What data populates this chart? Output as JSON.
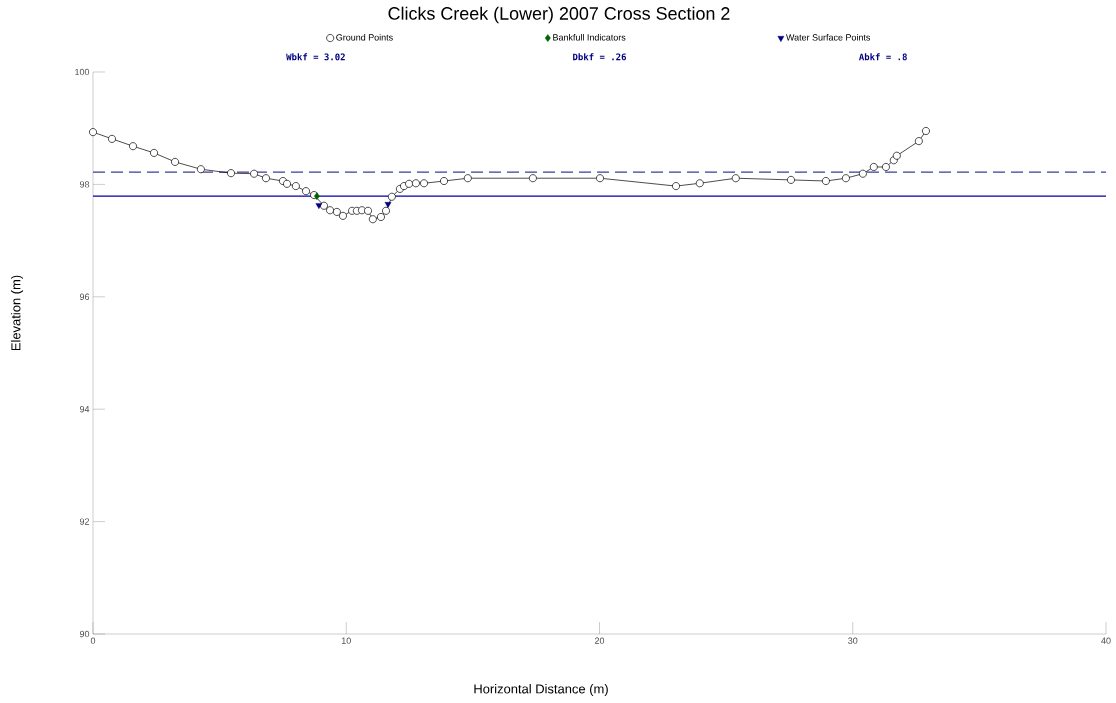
{
  "chart_data": {
    "type": "line",
    "title": "Clicks Creek (Lower) 2007 Cross Section 2",
    "xlabel": "Horizontal Distance (m)",
    "ylabel": "Elevation (m)",
    "xlim": [
      0,
      40
    ],
    "ylim": [
      90,
      100
    ],
    "xticks": [
      0,
      10,
      20,
      30,
      40
    ],
    "yticks": [
      90,
      92,
      94,
      96,
      98,
      100
    ],
    "grid": false,
    "legend": "top",
    "annotations": [
      "Wbkf = 3.02",
      "Dbkf = .26",
      "Abkf = .8"
    ],
    "ref_lines": [
      {
        "axis": "y",
        "value": 98.22,
        "color": "#3c3c96",
        "line_style": "dashed"
      },
      {
        "axis": "y",
        "value": 97.79,
        "color": "#0000a8",
        "line_style": "solid"
      }
    ],
    "series": [
      {
        "name": "Ground Points",
        "color": "#000000",
        "marker": "circle",
        "line_style": "solid",
        "x": [
          0,
          0.75,
          1.58,
          2.41,
          3.24,
          4.26,
          5.45,
          6.36,
          6.83,
          7.5,
          7.66,
          8.01,
          8.41,
          8.73,
          9.12,
          9.36,
          9.63,
          9.87,
          10.23,
          10.42,
          10.62,
          10.86,
          11.05,
          11.37,
          11.57,
          11.8,
          12.12,
          12.28,
          12.48,
          12.75,
          13.07,
          13.86,
          14.8,
          17.37,
          20.02,
          23.02,
          23.96,
          25.38,
          27.56,
          28.94,
          29.73,
          30.4,
          30.83,
          31.31,
          31.62,
          31.74,
          32.61,
          32.89
        ],
        "values": [
          98.93,
          98.81,
          98.68,
          98.56,
          98.4,
          98.27,
          98.2,
          98.19,
          98.11,
          98.06,
          98.01,
          97.97,
          97.88,
          97.81,
          97.62,
          97.54,
          97.51,
          97.44,
          97.53,
          97.53,
          97.54,
          97.53,
          97.38,
          97.42,
          97.53,
          97.78,
          97.92,
          97.97,
          98.01,
          98.02,
          98.02,
          98.06,
          98.11,
          98.11,
          98.11,
          97.97,
          98.02,
          98.11,
          98.08,
          98.06,
          98.11,
          98.19,
          98.31,
          98.31,
          98.43,
          98.51,
          98.77,
          98.95
        ]
      },
      {
        "name": "Bankfull Indicators",
        "type": "scatter",
        "color": "#006400",
        "marker": "diamond",
        "x": [
          8.84
        ],
        "values": [
          97.79
        ]
      },
      {
        "name": "Water Surface Points",
        "type": "scatter",
        "color": "#000080",
        "marker": "triangle",
        "x": [
          8.92,
          11.65
        ],
        "values": [
          97.63,
          97.65
        ]
      }
    ]
  }
}
